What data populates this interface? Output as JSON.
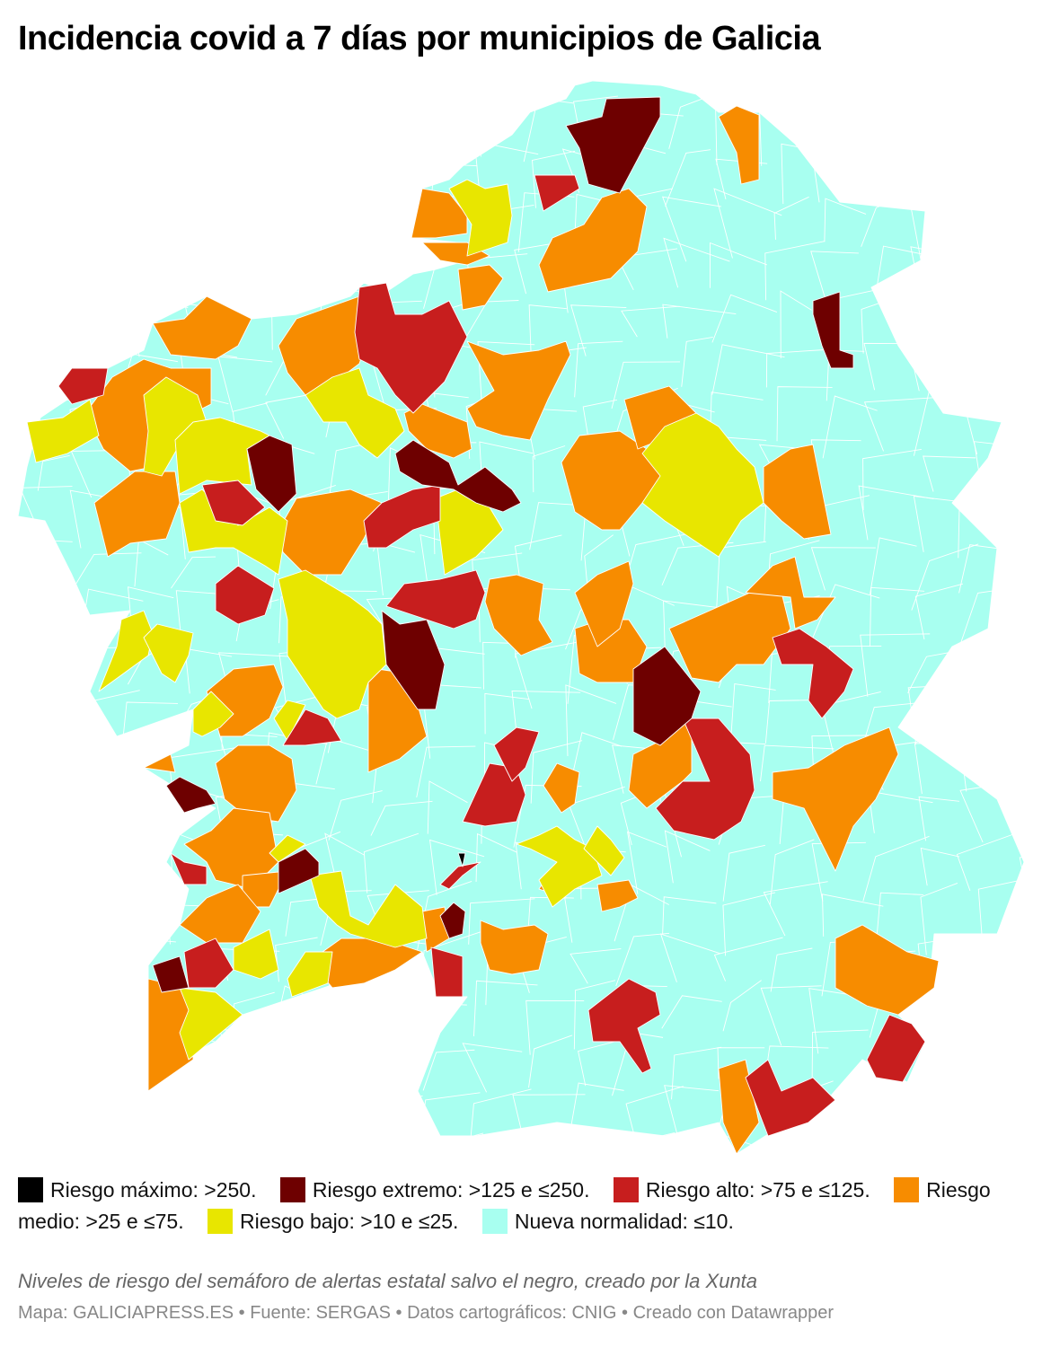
{
  "title": "Incidencia covid a 7 días por municipios de Galicia",
  "legend": [
    {
      "key": "maximo",
      "label": "Riesgo máximo: >250.",
      "color": "#000000"
    },
    {
      "key": "extremo",
      "label": "Riesgo extremo: >125 e ≤250.",
      "color": "#6e0000"
    },
    {
      "key": "alto",
      "label": "Riesgo alto: >75 e ≤125.",
      "color": "#c71e1e"
    },
    {
      "key": "medio",
      "label": "Riesgo medio: >25 e ≤75.",
      "color": "#f78c00"
    },
    {
      "key": "bajo",
      "label": "Riesgo bajo: >10 e ≤25.",
      "color": "#e8e600"
    },
    {
      "key": "normal",
      "label": "Nueva normalidad: ≤10.",
      "color": "#a8fff0"
    }
  ],
  "description": "Niveles de riesgo del semáforo de alertas estatal salvo el negro, creado por la Xunta",
  "credits": "Mapa: GALICIAPRESS.ES • Fuente: SERGAS • Datos cartográficos: CNIG • Creado con Datawrapper"
}
